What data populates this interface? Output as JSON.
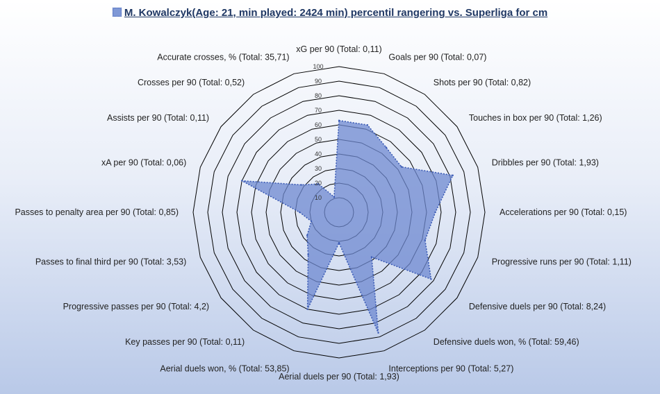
{
  "chart_data": {
    "type": "radar",
    "title": "M. Kowalczyk(Age: 21, min played: 2424 min) percentil rangering vs. Superliga for cm",
    "rlim": [
      0,
      100
    ],
    "ticks": [
      10,
      20,
      30,
      40,
      50,
      60,
      70,
      80,
      90,
      100
    ],
    "grid": true,
    "categories": [
      "xG per 90 (Total: 0,11)",
      "Goals per 90 (Total: 0,07)",
      "Shots per 90 (Total: 0,82)",
      "Touches in box per 90 (Total: 1,26)",
      "Dribbles per 90 (Total: 1,93)",
      "Accelerations per 90 (Total: 0,15)",
      "Progressive runs per 90 (Total: 1,11)",
      "Defensive duels per 90 (Total: 8,24)",
      "Defensive duels won, % (Total: 59,46)",
      "Interceptions per 90 (Total: 5,27)",
      "Aerial duels per 90 (Total: 1,93)",
      "Aerial duels won, % (Total: 53,85)",
      "Key passes per 90 (Total: 0,11)",
      "Progressive passes per 90 (Total: 4,2)",
      "Passes to final third per 90 (Total: 3,53)",
      "Passes to penalty area per 90 (Total: 0,85)",
      "xA per 90 (Total: 0,06)",
      "Assists per 90 (Total: 0,11)",
      "Crosses per 90 (Total: 0,52)",
      "Accurate crosses, % (Total: 35,71)"
    ],
    "series": [
      {
        "values": [
          63,
          63,
          55,
          53,
          82,
          66,
          62,
          78,
          38,
          87,
          21,
          70,
          36,
          27,
          20,
          27,
          70,
          32,
          24,
          11
        ]
      }
    ],
    "colors": {
      "fill": "#6d88d0",
      "stroke": "#3b5bb5",
      "grid": "#000000",
      "title": "#203864"
    }
  }
}
